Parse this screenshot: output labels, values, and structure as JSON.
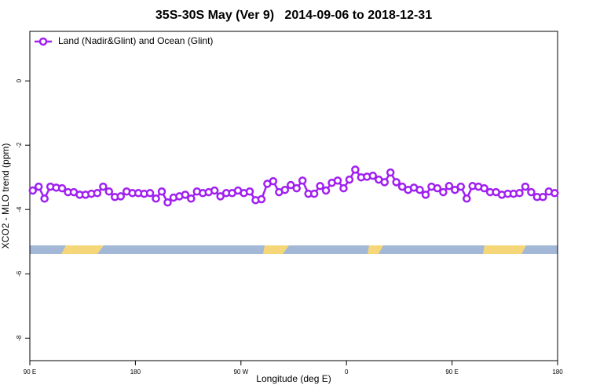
{
  "chart_data": {
    "type": "line",
    "title": "35S-30S May (Ver 9)   2014-09-06 to 2018-12-31",
    "x_label": "Longitude (deg E)",
    "y_label": "XCO2 - MLO trend (ppm)",
    "xlim": [
      90,
      540
    ],
    "xticks": [
      {
        "value": 90,
        "label": "90 E"
      },
      180,
      {
        "value": 270,
        "label": "90 W"
      },
      {
        "value": 360,
        "label": "0"
      },
      {
        "value": 450,
        "label": "90 E"
      },
      {
        "value": 540,
        "label": "180"
      }
    ],
    "ylim": [
      -8.7,
      1.54
    ],
    "yticks": [
      0,
      -2,
      -4,
      -6,
      -8
    ],
    "legend": "top-left",
    "x": [
      92.5,
      97.5,
      102.5,
      107.5,
      112.5,
      117.5,
      122.5,
      127.5,
      132.5,
      137.5,
      142.5,
      147.5,
      152.5,
      157.5,
      162.5,
      167.5,
      172.5,
      177.5,
      182.5,
      187.5,
      192.5,
      197.5,
      202.5,
      207.5,
      212.5,
      217.5,
      222.5,
      227.5,
      232.5,
      237.5,
      242.5,
      247.5,
      252.5,
      257.5,
      262.5,
      267.5,
      272.5,
      277.5,
      282.5,
      287.5,
      292.5,
      297.5,
      302.5,
      307.5,
      312.5,
      317.5,
      322.5,
      327.5,
      332.5,
      337.5,
      342.5,
      347.5,
      352.5,
      357.5,
      362.5,
      367.5,
      372.5,
      377.5,
      382.5,
      387.5,
      392.5,
      397.5,
      402.5,
      407.5,
      412.5,
      417.5,
      422.5,
      427.5,
      432.5,
      437.5,
      442.5,
      447.5,
      452.5,
      457.5,
      462.5,
      467.5,
      472.5,
      477.5,
      482.5,
      487.5,
      492.5,
      497.5,
      502.5,
      507.5,
      512.5,
      517.5,
      522.5,
      527.5,
      532.5,
      537.5
    ],
    "series": [
      {
        "name": "Land (Nadir&Glint) and Ocean (Glint)",
        "color": "#a020f0",
        "values": [
          -3.41,
          -3.29,
          -3.66,
          -3.29,
          -3.32,
          -3.34,
          -3.46,
          -3.46,
          -3.54,
          -3.54,
          -3.51,
          -3.49,
          -3.29,
          -3.44,
          -3.61,
          -3.59,
          -3.44,
          -3.49,
          -3.49,
          -3.51,
          -3.49,
          -3.66,
          -3.44,
          -3.78,
          -3.63,
          -3.59,
          -3.54,
          -3.66,
          -3.44,
          -3.49,
          -3.46,
          -3.41,
          -3.59,
          -3.49,
          -3.49,
          -3.41,
          -3.49,
          -3.44,
          -3.71,
          -3.68,
          -3.2,
          -3.12,
          -3.46,
          -3.39,
          -3.24,
          -3.34,
          -3.1,
          -3.51,
          -3.51,
          -3.27,
          -3.41,
          -3.17,
          -3.1,
          -3.34,
          -3.07,
          -2.76,
          -3.0,
          -2.98,
          -2.95,
          -3.07,
          -3.15,
          -2.85,
          -3.15,
          -3.29,
          -3.39,
          -3.32,
          -3.39,
          -3.54,
          -3.29,
          -3.34,
          -3.46,
          -3.27,
          -3.39,
          -3.29,
          -3.66,
          -3.27,
          -3.29,
          -3.34,
          -3.46,
          -3.46,
          -3.54,
          -3.51,
          -3.51,
          -3.49,
          -3.29,
          -3.46,
          -3.61,
          -3.61,
          -3.44,
          -3.49
        ]
      }
    ]
  }
}
